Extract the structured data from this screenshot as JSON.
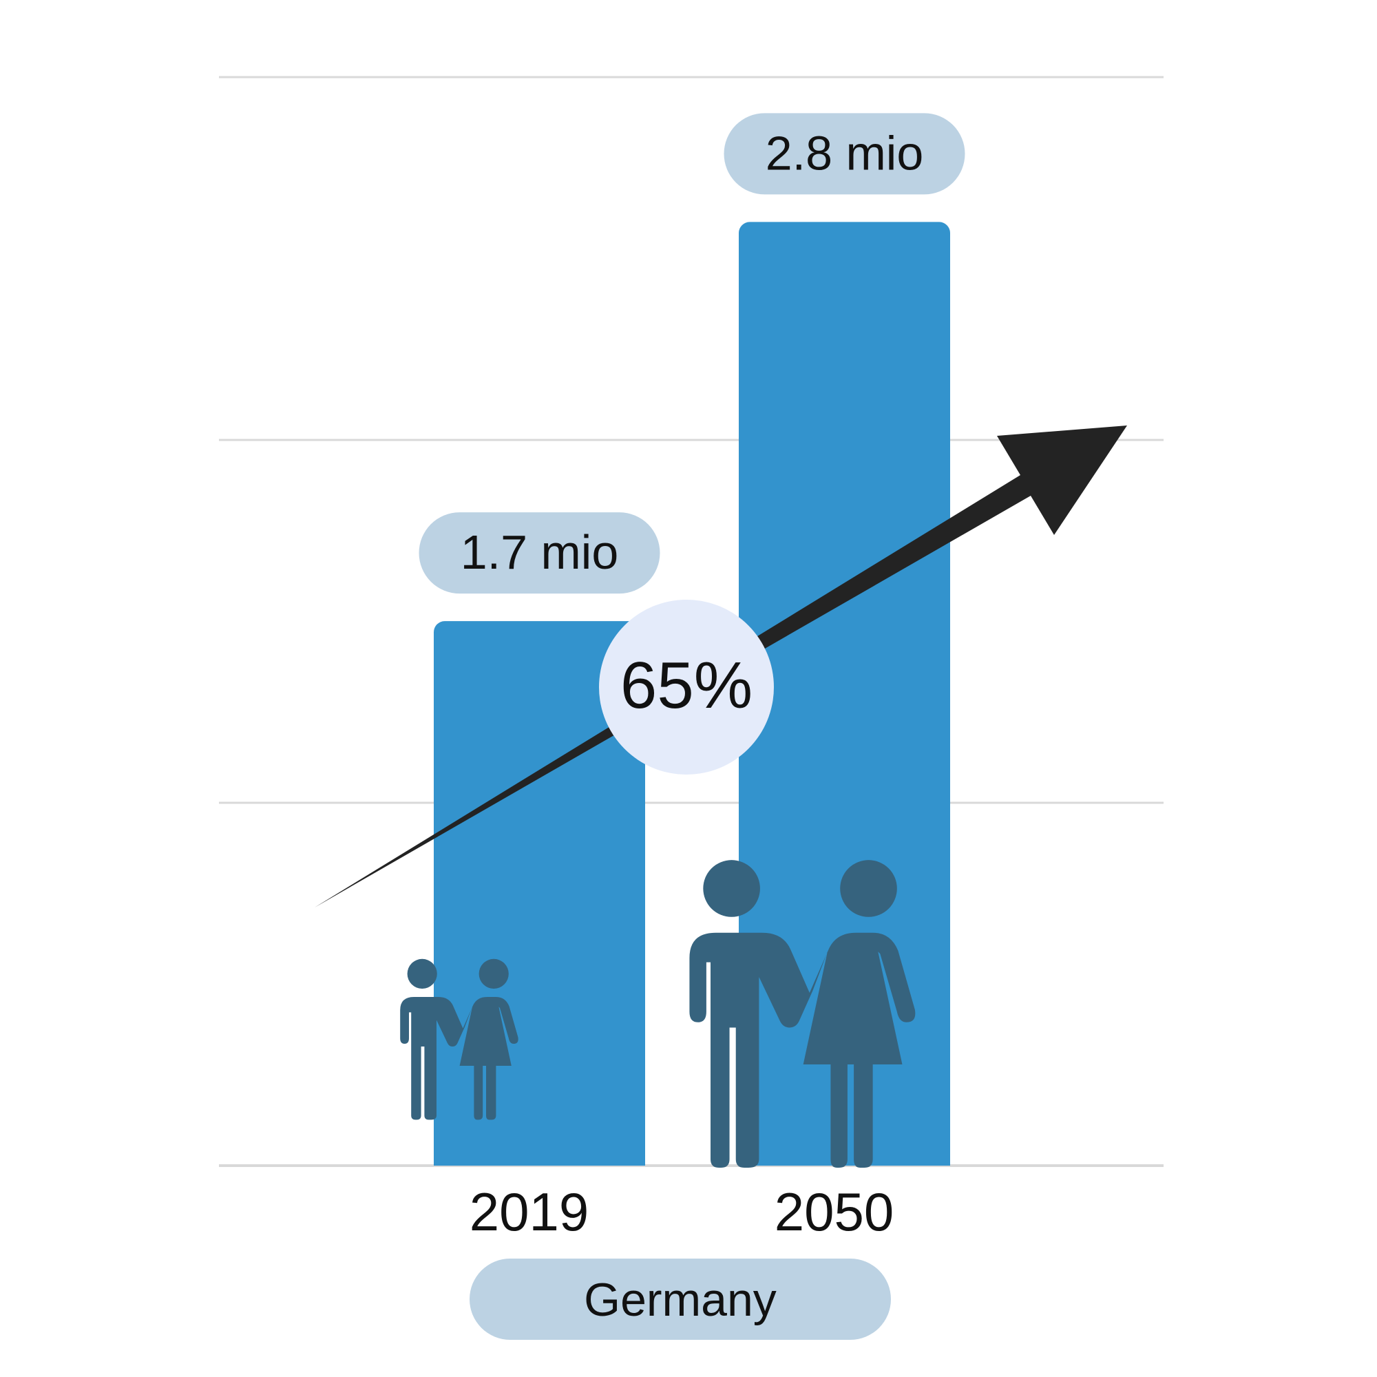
{
  "chart_data": {
    "type": "bar",
    "categories": [
      "2019",
      "2050"
    ],
    "values": [
      1.7,
      2.8
    ],
    "value_labels": [
      "1.7 mio",
      "2.8 mio"
    ],
    "unit": "mio",
    "ylim": [
      0,
      3
    ],
    "grid": true,
    "group_label": "Germany",
    "annotation": {
      "text": "65%"
    }
  },
  "colors": {
    "bar": "#3393cd",
    "label_pill": "#bcd2e3",
    "figures": "#36637e",
    "arrow": "#232323",
    "badge": "#e4ebfa",
    "gridline": "#d9d9d9",
    "text": "#111111"
  },
  "icons": {
    "small": "adult-couple-small-icon",
    "large": "adult-couple-large-icon"
  }
}
